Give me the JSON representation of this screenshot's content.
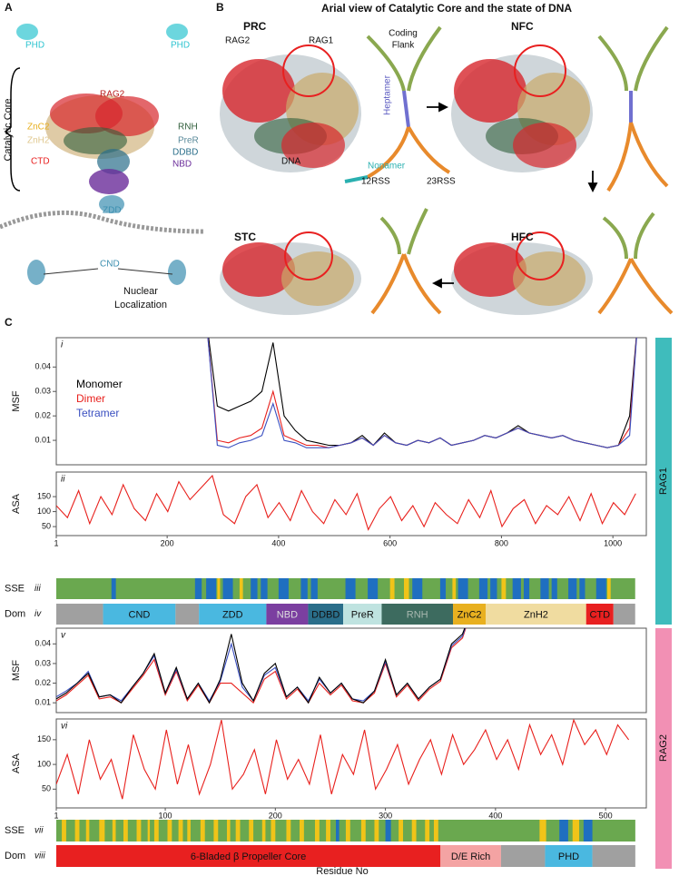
{
  "panel_a": {
    "label": "A",
    "phd_left": "PHD",
    "phd_right": "PHD",
    "rag2": "RAG2",
    "catalytic_core": "Catalytic Core",
    "znc2": "ZnC2",
    "znh2": "ZnH2",
    "rnh": "RNH",
    "prer": "PreR",
    "ddbd": "DDBD",
    "ctd": "CTD",
    "nbd": "NBD",
    "zdd": "ZDD",
    "cnd": "CND",
    "nuclear": "Nuclear",
    "localization": "Localization"
  },
  "panel_b": {
    "label": "B",
    "title": "Arial view of Catalytic Core and the state of DNA",
    "prc": "PRC",
    "rag2": "RAG2",
    "rag1": "RAG1",
    "coding": "Coding",
    "flank": "Flank",
    "heptamer": "Heptamer",
    "dna": "DNA",
    "nonamer": "Nonamer",
    "rss12": "12RSS",
    "rss23": "23RSS",
    "nfc": "NFC",
    "stc": "STC",
    "hfc": "HFC"
  },
  "panel_c": {
    "label": "C",
    "rag1": "RAG1",
    "rag2": "RAG2",
    "rag1_color": "#3fbcbc",
    "rag2_color": "#f290b4"
  },
  "chart_data": [
    {
      "type": "line",
      "label": "i",
      "ylabel": "MSF",
      "xlim": [
        1,
        1060
      ],
      "ylim": [
        0,
        0.052
      ],
      "yticks": [
        0.01,
        0.02,
        0.03,
        0.04
      ],
      "legend": "upper left",
      "x": [
        270,
        290,
        310,
        330,
        350,
        370,
        390,
        410,
        430,
        450,
        470,
        490,
        510,
        530,
        550,
        570,
        590,
        610,
        630,
        650,
        670,
        690,
        710,
        730,
        750,
        770,
        790,
        810,
        830,
        850,
        870,
        890,
        910,
        930,
        950,
        970,
        990,
        1010,
        1030,
        1045
      ],
      "series": [
        {
          "name": "Monomer",
          "color": "#000000",
          "values": [
            0.06,
            0.024,
            0.022,
            0.024,
            0.026,
            0.03,
            0.05,
            0.02,
            0.014,
            0.01,
            0.009,
            0.008,
            0.008,
            0.009,
            0.012,
            0.008,
            0.013,
            0.009,
            0.008,
            0.01,
            0.009,
            0.011,
            0.008,
            0.009,
            0.01,
            0.012,
            0.011,
            0.013,
            0.016,
            0.013,
            0.012,
            0.011,
            0.012,
            0.01,
            0.009,
            0.008,
            0.007,
            0.008,
            0.02,
            0.06
          ]
        },
        {
          "name": "Dimer",
          "color": "#e8201c",
          "values": [
            0.06,
            0.01,
            0.009,
            0.011,
            0.012,
            0.015,
            0.03,
            0.012,
            0.01,
            0.008,
            0.008,
            0.007,
            0.008,
            0.009,
            0.011,
            0.008,
            0.012,
            0.009,
            0.008,
            0.01,
            0.009,
            0.011,
            0.008,
            0.009,
            0.01,
            0.012,
            0.011,
            0.013,
            0.015,
            0.013,
            0.012,
            0.011,
            0.012,
            0.01,
            0.009,
            0.008,
            0.007,
            0.008,
            0.015,
            0.06
          ]
        },
        {
          "name": "Tetramer",
          "color": "#3a4fc0",
          "values": [
            0.06,
            0.008,
            0.007,
            0.009,
            0.01,
            0.012,
            0.025,
            0.01,
            0.009,
            0.007,
            0.007,
            0.007,
            0.008,
            0.009,
            0.011,
            0.008,
            0.012,
            0.009,
            0.008,
            0.01,
            0.009,
            0.011,
            0.008,
            0.009,
            0.01,
            0.012,
            0.011,
            0.013,
            0.015,
            0.013,
            0.012,
            0.011,
            0.012,
            0.01,
            0.009,
            0.008,
            0.007,
            0.008,
            0.012,
            0.06
          ]
        }
      ]
    },
    {
      "type": "line",
      "label": "ii",
      "ylabel": "ASA",
      "xlim": [
        1,
        1060
      ],
      "ylim": [
        20,
        232
      ],
      "yticks": [
        50,
        100,
        150
      ],
      "xticks": [
        1,
        200,
        400,
        600,
        800,
        1000
      ],
      "x": [
        1,
        21,
        41,
        61,
        81,
        101,
        121,
        141,
        161,
        181,
        201,
        221,
        241,
        261,
        281,
        301,
        321,
        341,
        361,
        381,
        401,
        421,
        441,
        461,
        481,
        501,
        521,
        541,
        561,
        581,
        601,
        621,
        641,
        661,
        681,
        701,
        721,
        741,
        761,
        781,
        801,
        821,
        841,
        861,
        881,
        901,
        921,
        941,
        961,
        981,
        1001,
        1021,
        1041
      ],
      "series": [
        {
          "color": "#e8201c",
          "values": [
            120,
            80,
            170,
            60,
            150,
            90,
            190,
            110,
            70,
            160,
            100,
            200,
            140,
            180,
            220,
            90,
            60,
            150,
            190,
            80,
            130,
            70,
            170,
            100,
            60,
            140,
            90,
            160,
            40,
            110,
            150,
            70,
            120,
            50,
            130,
            90,
            60,
            140,
            80,
            170,
            50,
            110,
            140,
            60,
            120,
            90,
            150,
            70,
            160,
            60,
            130,
            90,
            160
          ]
        }
      ]
    },
    {
      "type": "sse",
      "label": "iii",
      "ylabel": "SSE",
      "xlim": [
        1,
        1060
      ],
      "coil_color": "#6aa84f",
      "helix_color": "#1f6fc0",
      "strand_color": "#f0c419",
      "coil": [
        [
          1,
          1040
        ]
      ],
      "helices": [
        [
          100,
          108
        ],
        [
          250,
          262
        ],
        [
          270,
          288
        ],
        [
          300,
          318
        ],
        [
          350,
          362
        ],
        [
          368,
          380
        ],
        [
          400,
          418
        ],
        [
          440,
          452
        ],
        [
          458,
          470
        ],
        [
          520,
          538
        ],
        [
          560,
          578
        ],
        [
          640,
          658
        ],
        [
          690,
          700
        ],
        [
          722,
          740
        ],
        [
          760,
          775
        ],
        [
          780,
          792
        ],
        [
          820,
          835
        ],
        [
          840,
          850
        ],
        [
          870,
          885
        ],
        [
          890,
          900
        ],
        [
          920,
          935
        ],
        [
          940,
          950
        ],
        [
          970,
          988
        ]
      ],
      "strands": [
        [
          290,
          295
        ],
        [
          330,
          336
        ],
        [
          600,
          608
        ],
        [
          625,
          634
        ],
        [
          712,
          718
        ],
        [
          800,
          808
        ],
        [
          990,
          996
        ]
      ]
    },
    {
      "type": "domains",
      "label": "iv",
      "ylabel": "Dom",
      "xlim": [
        1,
        1060
      ],
      "segments": [
        {
          "start": 1,
          "end": 85,
          "color": "#a0a0a0"
        },
        {
          "name": "CND",
          "start": 85,
          "end": 215,
          "color": "#4ab8e0"
        },
        {
          "start": 215,
          "end": 257,
          "color": "#a0a0a0"
        },
        {
          "name": "ZDD",
          "start": 257,
          "end": 378,
          "color": "#4ab8e0"
        },
        {
          "name": "NBD",
          "start": 378,
          "end": 453,
          "color": "#7b3fa0",
          "text_color": "#dddddd"
        },
        {
          "name": "DDBD",
          "start": 453,
          "end": 516,
          "color": "#2a6e8a"
        },
        {
          "name": "PreR",
          "start": 516,
          "end": 585,
          "color": "#bfe3e0"
        },
        {
          "name": "RNH",
          "start": 585,
          "end": 713,
          "color": "#3d6b5f",
          "text_color": "#a8b8b0"
        },
        {
          "name": "ZnC2",
          "start": 713,
          "end": 772,
          "color": "#e8b020"
        },
        {
          "name": "ZnH2",
          "start": 772,
          "end": 952,
          "color": "#f0dca0"
        },
        {
          "name": "CTD",
          "start": 952,
          "end": 1001,
          "color": "#e82020"
        },
        {
          "start": 1001,
          "end": 1040,
          "color": "#a0a0a0"
        }
      ]
    },
    {
      "type": "line",
      "label": "v",
      "ylabel": "MSF",
      "xlim": [
        1,
        537
      ],
      "ylim": [
        0.005,
        0.048
      ],
      "yticks": [
        0.01,
        0.02,
        0.03,
        0.04
      ],
      "x": [
        1,
        10,
        20,
        30,
        40,
        50,
        60,
        70,
        80,
        90,
        100,
        110,
        120,
        130,
        140,
        150,
        160,
        170,
        180,
        190,
        200,
        210,
        220,
        230,
        240,
        250,
        260,
        270,
        280,
        290,
        300,
        310,
        320,
        330,
        340,
        350,
        360,
        370,
        380
      ],
      "series": [
        {
          "color": "#e8201c",
          "values": [
            0.011,
            0.014,
            0.019,
            0.024,
            0.012,
            0.013,
            0.01,
            0.017,
            0.024,
            0.032,
            0.014,
            0.026,
            0.011,
            0.019,
            0.01,
            0.02,
            0.02,
            0.015,
            0.01,
            0.022,
            0.026,
            0.012,
            0.017,
            0.01,
            0.02,
            0.014,
            0.019,
            0.011,
            0.01,
            0.015,
            0.03,
            0.013,
            0.019,
            0.011,
            0.017,
            0.021,
            0.038,
            0.043,
            0.06
          ]
        },
        {
          "color": "#3a4fc0",
          "values": [
            0.013,
            0.016,
            0.02,
            0.026,
            0.013,
            0.014,
            0.011,
            0.018,
            0.025,
            0.034,
            0.015,
            0.027,
            0.012,
            0.02,
            0.011,
            0.021,
            0.04,
            0.018,
            0.011,
            0.024,
            0.028,
            0.013,
            0.018,
            0.011,
            0.022,
            0.015,
            0.02,
            0.012,
            0.011,
            0.016,
            0.031,
            0.014,
            0.02,
            0.012,
            0.018,
            0.022,
            0.039,
            0.044,
            0.06
          ]
        },
        {
          "color": "#000000",
          "values": [
            0.012,
            0.015,
            0.02,
            0.025,
            0.013,
            0.014,
            0.01,
            0.018,
            0.025,
            0.035,
            0.015,
            0.028,
            0.012,
            0.02,
            0.01,
            0.022,
            0.045,
            0.02,
            0.011,
            0.025,
            0.03,
            0.013,
            0.018,
            0.01,
            0.023,
            0.015,
            0.02,
            0.012,
            0.01,
            0.016,
            0.032,
            0.014,
            0.02,
            0.012,
            0.018,
            0.022,
            0.04,
            0.045,
            0.06
          ]
        }
      ]
    },
    {
      "type": "line",
      "label": "vi",
      "ylabel": "ASA",
      "xlim": [
        1,
        537
      ],
      "ylim": [
        12,
        192
      ],
      "yticks": [
        50,
        100,
        150
      ],
      "xticks": [
        1,
        100,
        200,
        300,
        400,
        500
      ],
      "x": [
        1,
        11,
        21,
        31,
        41,
        51,
        61,
        71,
        81,
        91,
        101,
        111,
        121,
        131,
        141,
        151,
        161,
        171,
        181,
        191,
        201,
        211,
        221,
        231,
        241,
        251,
        261,
        271,
        281,
        291,
        301,
        311,
        321,
        331,
        341,
        351,
        361,
        371,
        381,
        391,
        401,
        411,
        421,
        431,
        441,
        451,
        461,
        471,
        481,
        491,
        501,
        511,
        521
      ],
      "series": [
        {
          "color": "#e8201c",
          "values": [
            60,
            120,
            40,
            150,
            70,
            110,
            30,
            160,
            90,
            50,
            170,
            60,
            140,
            40,
            100,
            190,
            50,
            80,
            130,
            40,
            150,
            70,
            110,
            60,
            160,
            40,
            120,
            80,
            170,
            50,
            90,
            140,
            60,
            110,
            150,
            80,
            160,
            100,
            130,
            170,
            110,
            150,
            90,
            180,
            120,
            160,
            100,
            190,
            140,
            170,
            120,
            180,
            150
          ]
        }
      ]
    },
    {
      "type": "sse",
      "label": "vii",
      "ylabel": "SSE",
      "xlim": [
        1,
        537
      ],
      "coil_color": "#6aa84f",
      "helix_color": "#1f6fc0",
      "strand_color": "#f0c419",
      "coil": [
        [
          1,
          527
        ]
      ],
      "helices": [
        [
          255,
          258
        ],
        [
          300,
          305
        ],
        [
          458,
          466
        ],
        [
          480,
          488
        ]
      ],
      "strands": [
        [
          6,
          10
        ],
        [
          18,
          22
        ],
        [
          28,
          31
        ],
        [
          40,
          45
        ],
        [
          52,
          55
        ],
        [
          62,
          66
        ],
        [
          74,
          78
        ],
        [
          84,
          86
        ],
        [
          90,
          94
        ],
        [
          102,
          106
        ],
        [
          112,
          116
        ],
        [
          120,
          123
        ],
        [
          132,
          136
        ],
        [
          144,
          148
        ],
        [
          156,
          159
        ],
        [
          164,
          168
        ],
        [
          176,
          180
        ],
        [
          188,
          191
        ],
        [
          196,
          200
        ],
        [
          210,
          214
        ],
        [
          222,
          226
        ],
        [
          236,
          240
        ],
        [
          246,
          250
        ],
        [
          264,
          268
        ],
        [
          278,
          282
        ],
        [
          290,
          294
        ],
        [
          312,
          316
        ],
        [
          324,
          328
        ],
        [
          336,
          340
        ],
        [
          344,
          348
        ],
        [
          440,
          446
        ],
        [
          470,
          476
        ]
      ]
    },
    {
      "type": "domains",
      "label": "viii",
      "ylabel": "Dom",
      "xlabel": "Residue No",
      "xlim": [
        1,
        537
      ],
      "segments": [
        {
          "name": "6-Bladed β Propeller Core",
          "start": 1,
          "end": 350,
          "color": "#e82020"
        },
        {
          "name": "D/E Rich",
          "start": 350,
          "end": 405,
          "color": "#f4a3a3"
        },
        {
          "start": 405,
          "end": 445,
          "color": "#a0a0a0"
        },
        {
          "name": "PHD",
          "start": 445,
          "end": 488,
          "color": "#4ab8e0"
        },
        {
          "start": 488,
          "end": 527,
          "color": "#a0a0a0"
        }
      ]
    }
  ]
}
